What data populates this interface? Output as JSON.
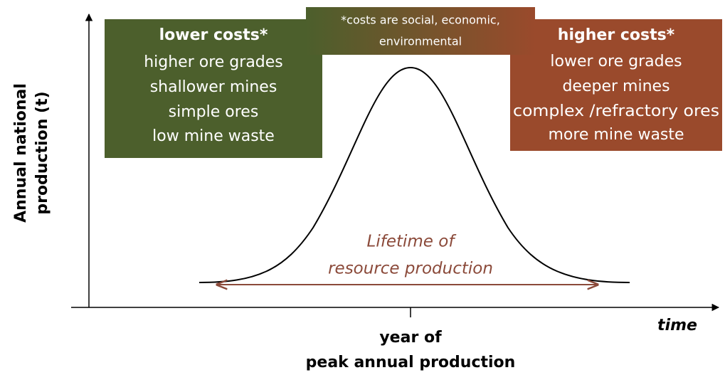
{
  "y_axis": {
    "label": [
      "Annual national",
      "production (t)"
    ]
  },
  "x_axis": {
    "label": "time"
  },
  "note": [
    "*costs are social, economic,",
    "environmental"
  ],
  "left_box": {
    "heading": "lower costs*",
    "items": [
      "higher ore grades",
      "shallower mines",
      "simple ores",
      "low mine waste"
    ]
  },
  "right_box": {
    "heading": "higher costs*",
    "items": [
      "lower ore grades",
      "deeper mines",
      "complex /refractory ores",
      "more mine waste"
    ]
  },
  "lifetime": [
    "Lifetime of",
    "resource production"
  ],
  "peak": [
    "year of",
    "peak annual production"
  ]
}
